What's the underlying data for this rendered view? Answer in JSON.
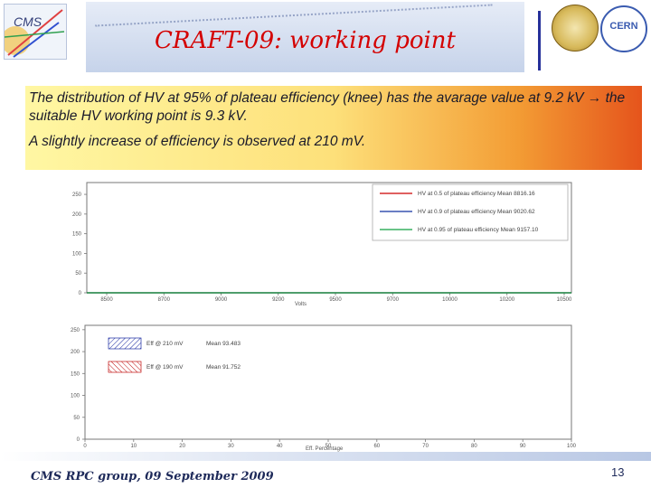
{
  "slide": {
    "title": "CRAFT-09: working point",
    "paragraph1": "The distribution of HV at 95% of plateau efficiency (knee) has the avarage value at 9.2 kV → the suitable HV working point is 9.3 kV.",
    "paragraph2": "A slightly increase of efficiency is observed at 210 mV.",
    "footer": "CMS RPC group, 09 September 2009",
    "page_number": "13",
    "logos": {
      "cms": "CMS",
      "cern": "CERN"
    }
  },
  "chart_data": [
    {
      "type": "bar",
      "xlabel": "Volts",
      "xticks": [
        "8500",
        "8700",
        "9000",
        "9200",
        "9500",
        "9700",
        "10000",
        "10200",
        "10500"
      ],
      "yticks": [
        "0",
        "50",
        "100",
        "150",
        "200",
        "250"
      ],
      "legend_position": "top-right",
      "series": [
        {
          "name": "HV at 0.5 of plateau efficiency Mean 8816.16",
          "color": "#cc0000",
          "values": [
            0,
            0,
            0,
            0,
            0,
            0,
            0,
            0,
            0,
            0,
            0,
            0,
            0,
            0,
            0,
            0,
            0,
            0,
            0,
            0,
            0,
            0,
            0,
            0,
            0,
            0,
            0,
            0,
            0,
            0,
            0,
            0
          ]
        },
        {
          "name": "HV at 0.9 of plateau efficiency Mean 9020.62",
          "color": "#1030a0",
          "values": [
            0,
            0,
            0,
            0,
            0,
            0,
            0,
            0,
            0,
            0,
            0,
            0,
            0,
            0,
            0,
            0,
            0,
            0,
            0,
            0,
            0,
            0,
            0,
            0,
            0,
            0,
            0,
            0,
            0,
            0,
            0,
            0
          ]
        },
        {
          "name": "HV at 0.95 of plateau efficiency Mean 9157.10",
          "color": "#10a040",
          "values": [
            0,
            0,
            0,
            0,
            0,
            0,
            0,
            0,
            0,
            0,
            0,
            0,
            0,
            0,
            0,
            0,
            0,
            0,
            0,
            0,
            0,
            0,
            0,
            0,
            0,
            0,
            0,
            0,
            0,
            0,
            0,
            0
          ]
        }
      ]
    },
    {
      "type": "bar",
      "xlabel": "Eff. Percentage",
      "xticks": [
        "0",
        "10",
        "20",
        "30",
        "40",
        "50",
        "60",
        "70",
        "80",
        "90",
        "100"
      ],
      "yticks": [
        "0",
        "50",
        "100",
        "150",
        "200",
        "250"
      ],
      "legend_position": "top-left",
      "series": [
        {
          "name": "Eff @ 210 mV",
          "label_mean": "Mean 93.483",
          "color": "#1a2aa0",
          "values": [
            0,
            0,
            0,
            0,
            0,
            0,
            0,
            0,
            0,
            0,
            0,
            0,
            0,
            0,
            0,
            0,
            0,
            0,
            0,
            0,
            0,
            0,
            0,
            0,
            0,
            0,
            0,
            0,
            0,
            0,
            0,
            0,
            0,
            0,
            0,
            0,
            0,
            0,
            0,
            0,
            0,
            0,
            0,
            0,
            0,
            0,
            0,
            0,
            0,
            0
          ]
        },
        {
          "name": "Eff @ 190 mV",
          "label_mean": "Mean 91.752",
          "color": "#c01010",
          "values": [
            0,
            0,
            0,
            0,
            0,
            0,
            0,
            0,
            0,
            0,
            0,
            0,
            0,
            0,
            0,
            0,
            0,
            0,
            0,
            0,
            0,
            0,
            0,
            0,
            0,
            0,
            0,
            0,
            0,
            0,
            0,
            0,
            0,
            0,
            0,
            0,
            0,
            0,
            0,
            0,
            0,
            0,
            0,
            0,
            0,
            0,
            0,
            0,
            0,
            0
          ]
        }
      ]
    }
  ]
}
